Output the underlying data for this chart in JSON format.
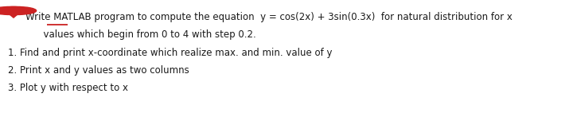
{
  "icon_color": "#cc2222",
  "title_line1": "Write MATLAB program to compute the equation  y = cos(2x) + 3sin(0.3x)  for natural distribution for x",
  "title_line2": "      values which begin from 0 to 4 with step 0.2.",
  "item1": "1. Find and print x-coordinate which realize max. and min. value of y",
  "item2": "2. Print x and y values as two columns",
  "item3": "3. Plot y with respect to x",
  "underline_color": "#cc2222",
  "text_color": "#1a1a1a",
  "font_size": 8.5,
  "fig_width": 7.2,
  "fig_height": 1.42
}
